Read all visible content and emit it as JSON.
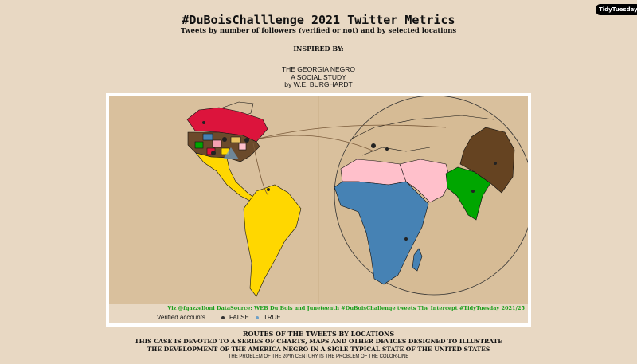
{
  "header": {
    "title": "#DuBoisChalllenge 2021 Twitter Metrics",
    "subtitle": "Tweets by number of followers (verified or not) and by selected locations",
    "inspired": "INSPIRED BY:",
    "credits": [
      "THE GEORGIA NEGRO",
      "A SOCIAL STUDY",
      "by W.E. BURGHARDT"
    ]
  },
  "logo": "TidyTuesday",
  "map": {
    "credit": "Viz @fgazzelloni DataSource: WEB Du Bois and Juneteenth #DuBoisChallenge tweets The Intercept #TidyTuesday 2021/25",
    "legend": {
      "title": "Verified accounts",
      "items": [
        {
          "label": "FALSE",
          "color": "#333333"
        },
        {
          "label": "TRUE",
          "color": "#6fa0c8"
        }
      ]
    },
    "colors": {
      "background": "#d9c09d",
      "canada": "#dc143c",
      "latin_america": "#ffd700",
      "africa": "#4682b4",
      "mena": "#ffc0cb",
      "south_asia": "#00a600",
      "china": "#654321"
    }
  },
  "footer": {
    "line1": "ROUTES OF THE TWEETS BY LOCATIONS",
    "line2": "THIS CASE IS DEVOTED TO A SERIES OF CHARTS, MAPS AND OTHER DEVICES DESIGNED TO ILLUSTRATE",
    "line3": "THE DEVELOPMENT OF THE AMERICA NEGRO IN A SIGLE TYPICAL STATE OF THE UNITED STATES",
    "line4": "THE PROBLEM OF THE 20*th CENTURY IS THE PROBLEM OF THE COLOR-LINE"
  }
}
